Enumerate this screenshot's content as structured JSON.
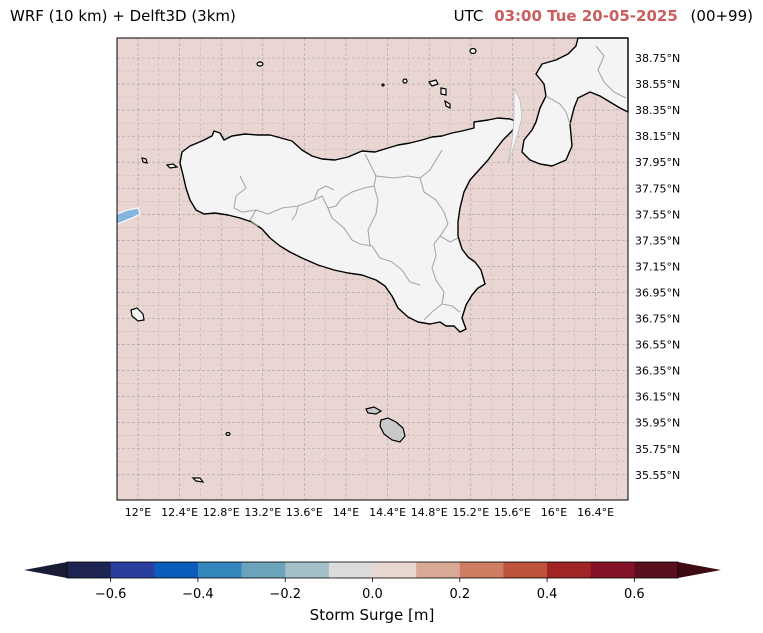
{
  "header": {
    "left_title": "WRF (10 km) + Delft3D (3km)",
    "utc_label": "UTC",
    "datetime": "03:00 Tue 20-05-2025",
    "run": "(00+99)"
  },
  "map": {
    "lat_labels": [
      "38.75°N",
      "38.55°N",
      "38.35°N",
      "38.15°N",
      "37.95°N",
      "37.75°N",
      "37.55°N",
      "37.35°N",
      "37.15°N",
      "36.95°N",
      "36.75°N",
      "36.55°N",
      "36.35°N",
      "36.15°N",
      "35.95°N",
      "35.75°N",
      "35.55°N"
    ],
    "lon_labels": [
      "12°E",
      "12.4°E",
      "12.8°E",
      "13.2°E",
      "13.6°E",
      "14°E",
      "14.4°E",
      "14.8°E",
      "15.2°E",
      "15.6°E",
      "16°E",
      "16.4°E"
    ],
    "sea_color": "#e9d6d3",
    "land_color": "#f4f4f4",
    "grid": true
  },
  "colorbar": {
    "label": "Storm Surge [m]",
    "ticks": [
      "−0.6",
      "−0.4",
      "−0.2",
      "0.0",
      "0.2",
      "0.4",
      "0.6"
    ],
    "colors": [
      "#1f2553",
      "#293e9e",
      "#0b5cbd",
      "#3387bc",
      "#6aa3ba",
      "#a5bfc9",
      "#dcdcdc",
      "#e8d6d0",
      "#d8a996",
      "#cf7d62",
      "#bc533a",
      "#a02524",
      "#831127",
      "#5a0f1e"
    ],
    "extend_low": "#1a1c35",
    "extend_high": "#3e0a14"
  }
}
